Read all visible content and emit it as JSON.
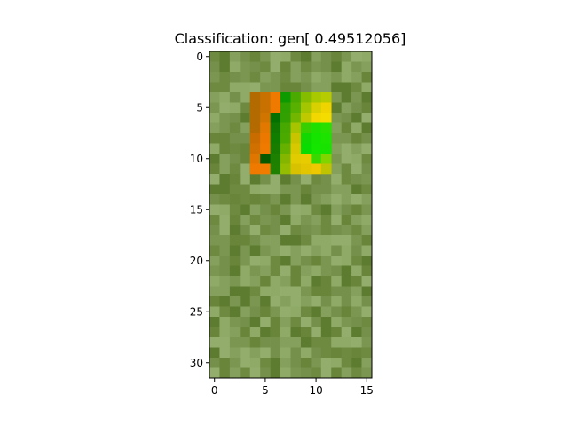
{
  "chart_data": {
    "type": "heatmap",
    "title": "Classification: gen[ 0.49512056]",
    "xlabel": "",
    "ylabel": "",
    "grid": false,
    "n_cols": 16,
    "n_rows": 32,
    "x_ticks": [
      0,
      5,
      10,
      15
    ],
    "y_ticks": [
      0,
      5,
      10,
      15,
      20,
      25,
      30
    ],
    "x_tick_labels": [
      "0",
      "5",
      "10",
      "15"
    ],
    "y_tick_labels": [
      "0",
      "5",
      "10",
      "15",
      "20",
      "25",
      "30"
    ],
    "background_colors": [
      "#6e8a41",
      "#7a9650",
      "#84a05c",
      "#8eaa66",
      "#68853a",
      "#5e7c30",
      "#93ad6c",
      "#74904a"
    ],
    "overlay_rows": [
      [
        "#b36a00",
        "#c87000",
        "#f07a00",
        "#0c9a00",
        "#4aaa00",
        "#86bc00",
        "#a8c800",
        "#b7cc00"
      ],
      [
        "#b36a00",
        "#c87000",
        "#f07a00",
        "#2ea000",
        "#58b000",
        "#a4c600",
        "#d8d000",
        "#f0d400"
      ],
      [
        "#b36a00",
        "#d07600",
        "#047000",
        "#32a000",
        "#72b600",
        "#c0c800",
        "#f2d800",
        "#f4dc00"
      ],
      [
        "#b36a00",
        "#e27800",
        "#107800",
        "#46a800",
        "#a8c400",
        "#36d000",
        "#1ee000",
        "#28e000"
      ],
      [
        "#c86c00",
        "#ec7800",
        "#107c00",
        "#4aaa00",
        "#c8c400",
        "#10d800",
        "#14e400",
        "#1ce400"
      ],
      [
        "#d07000",
        "#f07a00",
        "#187c00",
        "#66b000",
        "#d8c800",
        "#08dc00",
        "#14e600",
        "#18e200"
      ],
      [
        "#e07600",
        "#085a00",
        "#1e8000",
        "#84b600",
        "#e0cc00",
        "#e8cc00",
        "#38d800",
        "#80d400"
      ],
      [
        "#f07a00",
        "#f27c00",
        "#208000",
        "#94bc00",
        "#d8c200",
        "#e4c600",
        "#eec800",
        "#c0c400"
      ]
    ],
    "overlay_col_start": 4,
    "overlay_row_start": 4
  }
}
